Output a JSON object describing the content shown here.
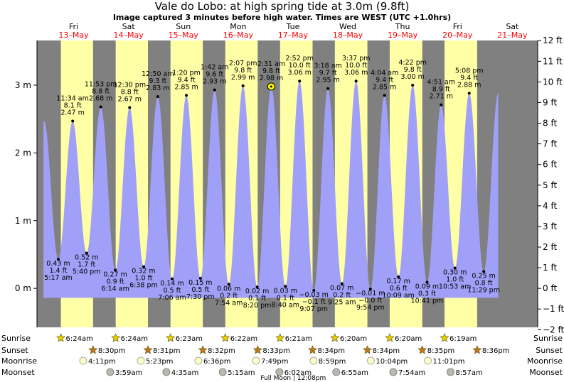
{
  "title": "Vale do Lobo: at high  spring tide at 3.0m (9.8ft)",
  "subtitle": "Image captured 3 minutes before high water. Times are WEST (UTC +1.0hrs)",
  "colors": {
    "night": "#808080",
    "day": "#ffffa6",
    "tide": "#a0a0f8",
    "date": "#ff0000"
  },
  "chart_data": {
    "type": "area",
    "ylabel_left_unit": "m",
    "ylabel_right_unit": "ft",
    "ylim_m": [
      -0.575,
      3.66
    ],
    "left_ticks": [
      {
        "v": 0,
        "label": "0 m"
      },
      {
        "v": 1,
        "label": "1 m"
      },
      {
        "v": 2,
        "label": "2 m"
      },
      {
        "v": 3,
        "label": "3 m"
      }
    ],
    "right_ticks": [
      {
        "v": -2,
        "label": "−2 ft"
      },
      {
        "v": -1,
        "label": "−1 ft"
      },
      {
        "v": 0,
        "label": "0 ft"
      },
      {
        "v": 1,
        "label": "1 ft"
      },
      {
        "v": 2,
        "label": "2 ft"
      },
      {
        "v": 3,
        "label": "3 ft"
      },
      {
        "v": 4,
        "label": "4 ft"
      },
      {
        "v": 5,
        "label": "5 ft"
      },
      {
        "v": 6,
        "label": "6 ft"
      },
      {
        "v": 7,
        "label": "7 ft"
      },
      {
        "v": 8,
        "label": "8 ft"
      },
      {
        "v": 9,
        "label": "9 ft"
      },
      {
        "v": 10,
        "label": "10 ft"
      },
      {
        "v": 11,
        "label": "11 ft"
      },
      {
        "v": 12,
        "label": "12 ft"
      }
    ],
    "days": [
      {
        "dow": "Fri",
        "date": "13–May",
        "t": 0
      },
      {
        "dow": "Sat",
        "date": "14–May",
        "t": 24
      },
      {
        "dow": "Sun",
        "date": "15–May",
        "t": 48
      },
      {
        "dow": "Mon",
        "date": "16–May",
        "t": 72
      },
      {
        "dow": "Tue",
        "date": "17–May",
        "t": 96
      },
      {
        "dow": "Wed",
        "date": "18–May",
        "t": 120
      },
      {
        "dow": "Thu",
        "date": "19–May",
        "t": 144
      },
      {
        "dow": "Fri",
        "date": "20–May",
        "t": 168
      },
      {
        "dow": "Sat",
        "date": "21–May",
        "t": 192
      }
    ],
    "tides": [
      {
        "type": "low",
        "h": 0.43,
        "lines": [
          "0.43 m",
          "1.4 ft",
          "5:17 am"
        ]
      },
      {
        "type": "high",
        "h": 2.47,
        "lines": [
          "11:34 am",
          "8.1 ft",
          "2.47 m"
        ]
      },
      {
        "type": "low",
        "h": 0.52,
        "lines": [
          "0.52 m",
          "1.7 ft",
          "5:40 pm"
        ]
      },
      {
        "type": "high",
        "h": 2.68,
        "lines": [
          "11:53 pm",
          "8.8 ft",
          "2.68 m"
        ]
      },
      {
        "type": "low",
        "h": 0.27,
        "lines": [
          "0.27 m",
          "0.9 ft",
          "6:14 am"
        ]
      },
      {
        "type": "high",
        "h": 2.67,
        "lines": [
          "12:30 pm",
          "8.8 ft",
          "2.67 m"
        ]
      },
      {
        "type": "low",
        "h": 0.32,
        "lines": [
          "0.32 m",
          "1.0 ft",
          "6:38 pm"
        ]
      },
      {
        "type": "high",
        "h": 2.83,
        "lines": [
          "12:50 am",
          "9.3 ft",
          "2.83 m"
        ]
      },
      {
        "type": "low",
        "h": 0.14,
        "lines": [
          "0.14 m",
          "0.5 ft",
          "7:06 am"
        ]
      },
      {
        "type": "high",
        "h": 2.85,
        "lines": [
          "1:20 pm",
          "9.4 ft",
          "2.85 m"
        ]
      },
      {
        "type": "low",
        "h": 0.15,
        "lines": [
          "0.15 m",
          "0.5 ft",
          "7:30 pm"
        ]
      },
      {
        "type": "high",
        "h": 2.93,
        "lines": [
          "1:42 am",
          "9.6 ft",
          "2.93 m"
        ]
      },
      {
        "type": "low",
        "h": 0.06,
        "lines": [
          "0.06 m",
          "0.2 ft",
          "7:54 am"
        ]
      },
      {
        "type": "high",
        "h": 2.99,
        "lines": [
          "2:07 pm",
          "9.8 ft",
          "2.99 m"
        ]
      },
      {
        "type": "low",
        "h": 0.02,
        "lines": [
          "0.02 m",
          "0.1 ft",
          "8:20 pm"
        ]
      },
      {
        "type": "high",
        "h": 2.98,
        "lines": [
          "2:31 am",
          "9.8 ft",
          "2.98 m"
        ]
      },
      {
        "type": "low",
        "h": 0.03,
        "lines": [
          "0.03 m",
          "0.1 ft",
          "8:40 am"
        ]
      },
      {
        "type": "high",
        "h": 3.06,
        "lines": [
          "2:52 pm",
          "10.0 ft",
          "3.06 m"
        ]
      },
      {
        "type": "low",
        "h": -0.03,
        "lines": [
          "−0.03 m",
          "−0.1 ft",
          "9:07 pm"
        ]
      },
      {
        "type": "high",
        "h": 2.95,
        "lines": [
          "3:18 am",
          "9.7 ft",
          "2.95 m"
        ]
      },
      {
        "type": "low",
        "h": 0.07,
        "lines": [
          "0.07 m",
          "0.2 ft",
          "9:25 am"
        ]
      },
      {
        "type": "high",
        "h": 3.06,
        "lines": [
          "3:37 pm",
          "10.0 ft",
          "3.06 m"
        ]
      },
      {
        "type": "low",
        "h": -0.01,
        "lines": [
          "−0.01 m",
          "−0.0 ft",
          "9:54 pm"
        ]
      },
      {
        "type": "high",
        "h": 2.85,
        "lines": [
          "4:04 am",
          "9.4 ft",
          "2.85 m"
        ]
      },
      {
        "type": "low",
        "h": 0.17,
        "lines": [
          "0.17 m",
          "0.6 ft",
          "10:09 am"
        ]
      },
      {
        "type": "high",
        "h": 3.0,
        "lines": [
          "4:22 pm",
          "9.8 ft",
          "3.00 m"
        ]
      },
      {
        "type": "low",
        "h": 0.09,
        "lines": [
          "0.09 m",
          "0.3 ft",
          "10:41 pm"
        ]
      },
      {
        "type": "high",
        "h": 2.71,
        "lines": [
          "4:51 am",
          "8.9 ft",
          "2.71 m"
        ]
      },
      {
        "type": "low",
        "h": 0.3,
        "lines": [
          "0.30 m",
          "1.0 ft",
          "10:53 am"
        ]
      },
      {
        "type": "high",
        "h": 2.88,
        "lines": [
          "5:08 pm",
          "9.4 ft",
          "2.88 m"
        ]
      },
      {
        "type": "low",
        "h": 0.25,
        "lines": [
          "0.25 m",
          "0.8 ft",
          "11:29 pm"
        ]
      }
    ],
    "now": {
      "h": 2.98
    },
    "sunrise": [
      "6:24am",
      "6:24am",
      "6:23am",
      "6:22am",
      "6:21am",
      "6:20am",
      "6:20am",
      "6:19am"
    ],
    "sunset": [
      "8:30pm",
      "8:31pm",
      "8:32pm",
      "8:33pm",
      "8:34pm",
      "8:34pm",
      "8:35pm",
      "8:36pm"
    ],
    "moonrise": [
      "4:11pm",
      "5:23pm",
      "6:36pm",
      "7:49pm",
      "8:59pm",
      "10:04pm",
      "11:01pm"
    ],
    "moonset": [
      "3:59am",
      "4:35am",
      "5:15am",
      "6:02am",
      "6:55am",
      "7:54am",
      "8:57am"
    ],
    "footer_labels": {
      "sunrise": "Sunrise",
      "sunset": "Sunset",
      "moonrise": "Moonrise",
      "moonset": "Moonset"
    },
    "full_moon": "Full Moon | 12:08pm"
  }
}
